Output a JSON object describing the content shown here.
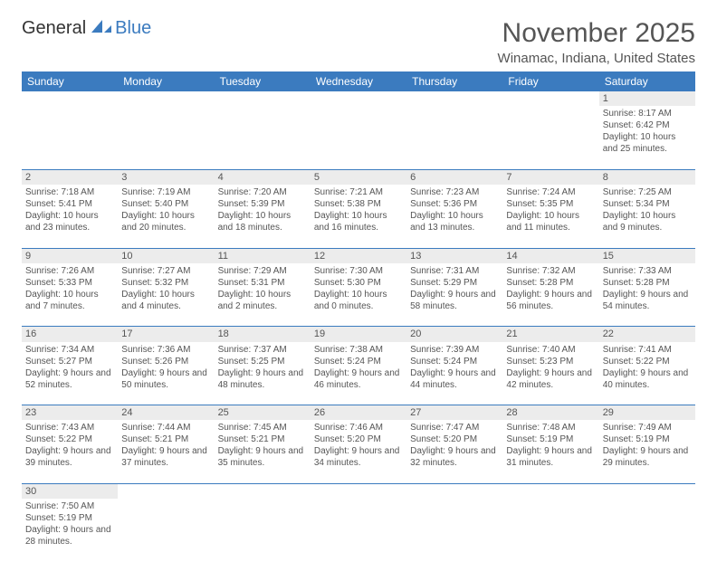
{
  "logo": {
    "part1": "General",
    "part2": "Blue"
  },
  "title": "November 2025",
  "location": "Winamac, Indiana, United States",
  "colors": {
    "header_bg": "#3b7bbf",
    "header_text": "#ffffff",
    "daynum_bg": "#ececec",
    "border": "#3b7bbf",
    "text": "#555555",
    "page_bg": "#ffffff"
  },
  "weekdays": [
    "Sunday",
    "Monday",
    "Tuesday",
    "Wednesday",
    "Thursday",
    "Friday",
    "Saturday"
  ],
  "weeks": [
    [
      null,
      null,
      null,
      null,
      null,
      null,
      {
        "n": "1",
        "sr": "8:17 AM",
        "ss": "6:42 PM",
        "dl": "10 hours and 25 minutes."
      }
    ],
    [
      {
        "n": "2",
        "sr": "7:18 AM",
        "ss": "5:41 PM",
        "dl": "10 hours and 23 minutes."
      },
      {
        "n": "3",
        "sr": "7:19 AM",
        "ss": "5:40 PM",
        "dl": "10 hours and 20 minutes."
      },
      {
        "n": "4",
        "sr": "7:20 AM",
        "ss": "5:39 PM",
        "dl": "10 hours and 18 minutes."
      },
      {
        "n": "5",
        "sr": "7:21 AM",
        "ss": "5:38 PM",
        "dl": "10 hours and 16 minutes."
      },
      {
        "n": "6",
        "sr": "7:23 AM",
        "ss": "5:36 PM",
        "dl": "10 hours and 13 minutes."
      },
      {
        "n": "7",
        "sr": "7:24 AM",
        "ss": "5:35 PM",
        "dl": "10 hours and 11 minutes."
      },
      {
        "n": "8",
        "sr": "7:25 AM",
        "ss": "5:34 PM",
        "dl": "10 hours and 9 minutes."
      }
    ],
    [
      {
        "n": "9",
        "sr": "7:26 AM",
        "ss": "5:33 PM",
        "dl": "10 hours and 7 minutes."
      },
      {
        "n": "10",
        "sr": "7:27 AM",
        "ss": "5:32 PM",
        "dl": "10 hours and 4 minutes."
      },
      {
        "n": "11",
        "sr": "7:29 AM",
        "ss": "5:31 PM",
        "dl": "10 hours and 2 minutes."
      },
      {
        "n": "12",
        "sr": "7:30 AM",
        "ss": "5:30 PM",
        "dl": "10 hours and 0 minutes."
      },
      {
        "n": "13",
        "sr": "7:31 AM",
        "ss": "5:29 PM",
        "dl": "9 hours and 58 minutes."
      },
      {
        "n": "14",
        "sr": "7:32 AM",
        "ss": "5:28 PM",
        "dl": "9 hours and 56 minutes."
      },
      {
        "n": "15",
        "sr": "7:33 AM",
        "ss": "5:28 PM",
        "dl": "9 hours and 54 minutes."
      }
    ],
    [
      {
        "n": "16",
        "sr": "7:34 AM",
        "ss": "5:27 PM",
        "dl": "9 hours and 52 minutes."
      },
      {
        "n": "17",
        "sr": "7:36 AM",
        "ss": "5:26 PM",
        "dl": "9 hours and 50 minutes."
      },
      {
        "n": "18",
        "sr": "7:37 AM",
        "ss": "5:25 PM",
        "dl": "9 hours and 48 minutes."
      },
      {
        "n": "19",
        "sr": "7:38 AM",
        "ss": "5:24 PM",
        "dl": "9 hours and 46 minutes."
      },
      {
        "n": "20",
        "sr": "7:39 AM",
        "ss": "5:24 PM",
        "dl": "9 hours and 44 minutes."
      },
      {
        "n": "21",
        "sr": "7:40 AM",
        "ss": "5:23 PM",
        "dl": "9 hours and 42 minutes."
      },
      {
        "n": "22",
        "sr": "7:41 AM",
        "ss": "5:22 PM",
        "dl": "9 hours and 40 minutes."
      }
    ],
    [
      {
        "n": "23",
        "sr": "7:43 AM",
        "ss": "5:22 PM",
        "dl": "9 hours and 39 minutes."
      },
      {
        "n": "24",
        "sr": "7:44 AM",
        "ss": "5:21 PM",
        "dl": "9 hours and 37 minutes."
      },
      {
        "n": "25",
        "sr": "7:45 AM",
        "ss": "5:21 PM",
        "dl": "9 hours and 35 minutes."
      },
      {
        "n": "26",
        "sr": "7:46 AM",
        "ss": "5:20 PM",
        "dl": "9 hours and 34 minutes."
      },
      {
        "n": "27",
        "sr": "7:47 AM",
        "ss": "5:20 PM",
        "dl": "9 hours and 32 minutes."
      },
      {
        "n": "28",
        "sr": "7:48 AM",
        "ss": "5:19 PM",
        "dl": "9 hours and 31 minutes."
      },
      {
        "n": "29",
        "sr": "7:49 AM",
        "ss": "5:19 PM",
        "dl": "9 hours and 29 minutes."
      }
    ],
    [
      {
        "n": "30",
        "sr": "7:50 AM",
        "ss": "5:19 PM",
        "dl": "9 hours and 28 minutes."
      },
      null,
      null,
      null,
      null,
      null,
      null
    ]
  ],
  "labels": {
    "sunrise": "Sunrise:",
    "sunset": "Sunset:",
    "daylight": "Daylight:"
  }
}
